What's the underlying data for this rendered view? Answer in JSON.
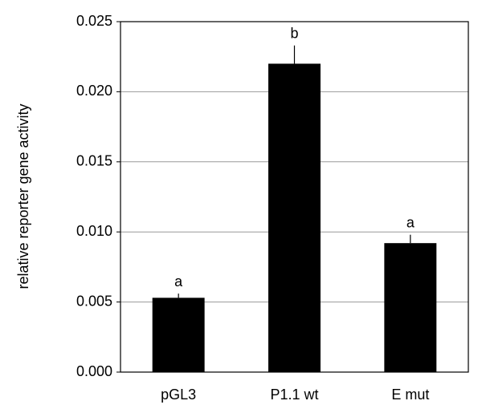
{
  "chart_data": {
    "type": "bar",
    "y_label": "relative reporter gene activity",
    "categories": [
      "pGL3",
      "P1.1 wt",
      "E mut"
    ],
    "values": [
      0.0053,
      0.022,
      0.0092
    ],
    "errors": [
      0.0003,
      0.0013,
      0.0006
    ],
    "annotations": [
      "a",
      "b",
      "a"
    ],
    "color": "#000000",
    "ylim": [
      0,
      0.025
    ],
    "yticks": [
      {
        "value": 0,
        "label": "0.000"
      },
      {
        "value": 0.005,
        "label": "0.005"
      },
      {
        "value": 0.01,
        "label": "0.010"
      },
      {
        "value": 0.015,
        "label": "0.015"
      },
      {
        "value": 0.02,
        "label": "0.020"
      },
      {
        "value": 0.025,
        "label": "0.025"
      }
    ],
    "grid": true
  }
}
